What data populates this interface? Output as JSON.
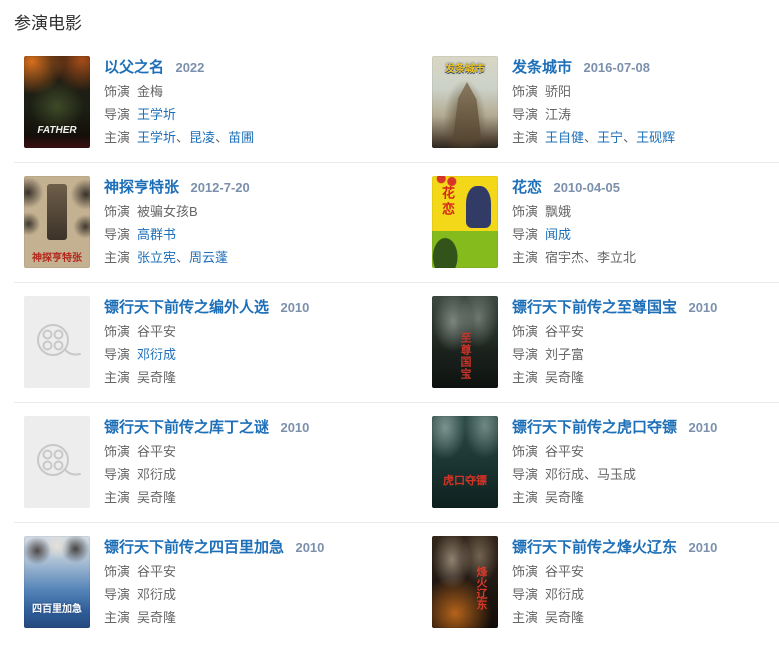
{
  "page": {
    "title": "参演电影"
  },
  "colors": {
    "link": "#1d6fb8",
    "year_text": "#7b90ad",
    "body_text": "#666666",
    "divider": "#e9e9e9",
    "heading_text": "#2f2f2f",
    "placeholder_bg": "#ededed",
    "placeholder_icon": "#c8c8c8"
  },
  "icons": {
    "placeholder_poster": "film-reel-icon"
  },
  "credit_labels": {
    "role": "饰演",
    "director": "导演",
    "starring": "主演"
  },
  "name_separator": "、",
  "movies": [
    {
      "title": "以父之名",
      "year": "2022",
      "poster": {
        "kind": "art",
        "art": "art-father",
        "text": "FATHER"
      },
      "role": [
        {
          "t": "金梅",
          "link": false
        }
      ],
      "director": [
        {
          "t": "王学圻",
          "link": true
        }
      ],
      "starring": [
        {
          "t": "王学圻",
          "link": true
        },
        {
          "t": "昆凌",
          "link": true
        },
        {
          "t": "苗圃",
          "link": true
        }
      ]
    },
    {
      "title": "发条城市",
      "year": "2016-07-08",
      "poster": {
        "kind": "art",
        "art": "art-clockwork",
        "text": "发条城市"
      },
      "role": [
        {
          "t": "骄阳",
          "link": false
        }
      ],
      "director": [
        {
          "t": "江涛",
          "link": false
        }
      ],
      "starring": [
        {
          "t": "王自健",
          "link": true
        },
        {
          "t": "王宁",
          "link": true
        },
        {
          "t": "王砚辉",
          "link": true
        }
      ]
    },
    {
      "title": "神探亨特张",
      "year": "2012-7-20",
      "poster": {
        "kind": "art",
        "art": "art-hunter",
        "text": "神探亨特张"
      },
      "role": [
        {
          "t": "被骗女孩B",
          "link": false
        }
      ],
      "director": [
        {
          "t": "高群书",
          "link": true
        }
      ],
      "starring": [
        {
          "t": "张立宪",
          "link": true
        },
        {
          "t": "周云蓬",
          "link": true
        }
      ]
    },
    {
      "title": "花恋",
      "year": "2010-04-05",
      "poster": {
        "kind": "art",
        "art": "art-hualian",
        "text": "花恋"
      },
      "role": [
        {
          "t": "飘娥",
          "link": false
        }
      ],
      "director": [
        {
          "t": "闻成",
          "link": true
        }
      ],
      "starring": [
        {
          "t": "宿宇杰",
          "link": false
        },
        {
          "t": "李立北",
          "link": false
        }
      ]
    },
    {
      "title": "镖行天下前传之编外人选",
      "year": "2010",
      "poster": {
        "kind": "placeholder",
        "art": "art-placeholder",
        "text": ""
      },
      "role": [
        {
          "t": "谷平安",
          "link": false
        }
      ],
      "director": [
        {
          "t": "邓衍成",
          "link": true
        }
      ],
      "starring": [
        {
          "t": "吴奇隆",
          "link": false
        }
      ]
    },
    {
      "title": "镖行天下前传之至尊国宝",
      "year": "2010",
      "poster": {
        "kind": "art",
        "art": "art-guobao",
        "text": "至尊国宝"
      },
      "role": [
        {
          "t": "谷平安",
          "link": false
        }
      ],
      "director": [
        {
          "t": "刘子富",
          "link": false
        }
      ],
      "starring": [
        {
          "t": "吴奇隆",
          "link": false
        }
      ]
    },
    {
      "title": "镖行天下前传之库丁之谜",
      "year": "2010",
      "poster": {
        "kind": "placeholder",
        "art": "art-placeholder",
        "text": ""
      },
      "role": [
        {
          "t": "谷平安",
          "link": false
        }
      ],
      "director": [
        {
          "t": "邓衍成",
          "link": false
        }
      ],
      "starring": [
        {
          "t": "吴奇隆",
          "link": false
        }
      ]
    },
    {
      "title": "镖行天下前传之虎口夺镖",
      "year": "2010",
      "poster": {
        "kind": "art",
        "art": "art-hukou",
        "text": "虎口夺镖"
      },
      "role": [
        {
          "t": "谷平安",
          "link": false
        }
      ],
      "director": [
        {
          "t": "邓衍成",
          "link": false
        },
        {
          "t": "马玉成",
          "link": false
        }
      ],
      "starring": [
        {
          "t": "吴奇隆",
          "link": false
        }
      ]
    },
    {
      "title": "镖行天下前传之四百里加急",
      "year": "2010",
      "poster": {
        "kind": "art",
        "art": "art-sibaili",
        "text": "四百里加急"
      },
      "role": [
        {
          "t": "谷平安",
          "link": false
        }
      ],
      "director": [
        {
          "t": "邓衍成",
          "link": false
        }
      ],
      "starring": [
        {
          "t": "吴奇隆",
          "link": false
        }
      ]
    },
    {
      "title": "镖行天下前传之烽火辽东",
      "year": "2010",
      "poster": {
        "kind": "art",
        "art": "art-fenghuo",
        "text": "烽火辽东"
      },
      "role": [
        {
          "t": "谷平安",
          "link": false
        }
      ],
      "director": [
        {
          "t": "邓衍成",
          "link": false
        }
      ],
      "starring": [
        {
          "t": "吴奇隆",
          "link": false
        }
      ]
    }
  ]
}
